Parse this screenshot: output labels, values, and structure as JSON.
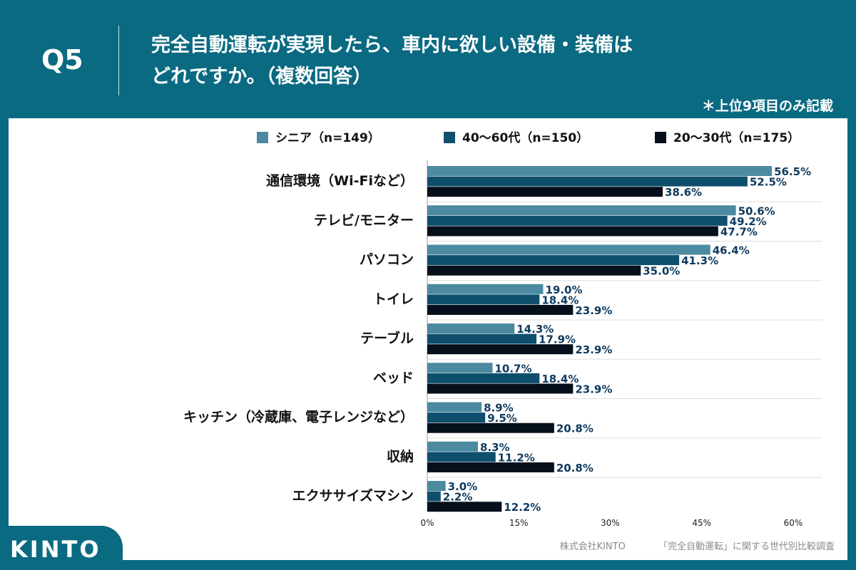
{
  "header": {
    "question": "Q5",
    "title_line1": "完全自動運転が実現したら、車内に欲しい設備・装備は",
    "title_line2": "どれですか。（複数回答）",
    "note": "＊上位9項目のみ記載"
  },
  "chart_data": {
    "type": "bar",
    "orientation": "horizontal",
    "categories": [
      "通信環境（Wi-Fiなど）",
      "テレビ/モニター",
      "パソコン",
      "トイレ",
      "テーブル",
      "ベッド",
      "キッチン（冷蔵庫、電子レンジなど）",
      "収納",
      "エクササイズマシン"
    ],
    "series": [
      {
        "name": "シニア（n=149）",
        "color": "#4b8aa0",
        "values": [
          56.5,
          50.6,
          46.4,
          19.0,
          14.3,
          10.7,
          8.9,
          8.3,
          3.0
        ],
        "labels": [
          "56.5%",
          "50.6%",
          "46.4%",
          "19.0%",
          "14.3%",
          "10.7%",
          "8.9%",
          "8.3%",
          "3.0%"
        ]
      },
      {
        "name": "40〜60代（n=150）",
        "color": "#0e4f6e",
        "values": [
          52.5,
          49.2,
          41.3,
          18.4,
          17.9,
          18.4,
          9.5,
          11.2,
          2.2
        ],
        "labels": [
          "52.5%",
          "49.2%",
          "41.3%",
          "18.4%",
          "17.9%",
          "18.4%",
          "9.5%",
          "11.2%",
          "2.2%"
        ]
      },
      {
        "name": "20〜30代（n=175）",
        "color": "#060f1c",
        "values": [
          38.6,
          47.7,
          35.0,
          23.9,
          23.9,
          23.9,
          20.8,
          20.8,
          12.2
        ],
        "labels": [
          "38.6%",
          "47.7%",
          "35.0%",
          "23.9%",
          "23.9%",
          "23.9%",
          "20.8%",
          "20.8%",
          "12.2%"
        ]
      }
    ],
    "xlim": [
      0,
      60
    ],
    "xticks": [
      0,
      15,
      30,
      45,
      60
    ],
    "xtick_labels": [
      "0%",
      "15%",
      "30%",
      "45%",
      "60%"
    ],
    "legend_position": "top",
    "label_color": "#0e3a5e"
  },
  "footer": {
    "company": "株式会社KINTO",
    "survey": "「完全自動運転」に関する世代別比較調査"
  },
  "brand": {
    "logo_text": "KINTO"
  }
}
